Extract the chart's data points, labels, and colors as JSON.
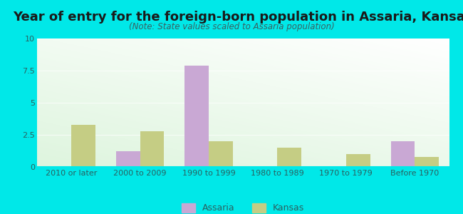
{
  "title": "Year of entry for the foreign-born population in Assaria, Kansas",
  "subtitle": "(Note: State values scaled to Assaria population)",
  "categories": [
    "2010 or later",
    "2000 to 2009",
    "1990 to 1999",
    "1980 to 1989",
    "1970 to 1979",
    "Before 1970"
  ],
  "assaria_values": [
    0,
    1.2,
    7.9,
    0,
    0,
    2.0
  ],
  "kansas_values": [
    3.3,
    2.8,
    2.0,
    1.5,
    1.0,
    0.8
  ],
  "assaria_color": "#c9a8d4",
  "kansas_color": "#c5cd84",
  "ylim": [
    0,
    10
  ],
  "yticks": [
    0,
    2.5,
    5,
    7.5,
    10
  ],
  "ytick_labels": [
    "0",
    "2.5",
    "5",
    "7.5",
    "10"
  ],
  "background_color": "#00e8e8",
  "bar_width": 0.35,
  "legend_labels": [
    "Assaria",
    "Kansas"
  ],
  "title_fontsize": 13,
  "subtitle_fontsize": 8.5,
  "tick_fontsize": 8,
  "legend_fontsize": 9,
  "axis_text_color": "#2a6060",
  "title_color": "#1a1a1a",
  "subtitle_color": "#3a6060"
}
